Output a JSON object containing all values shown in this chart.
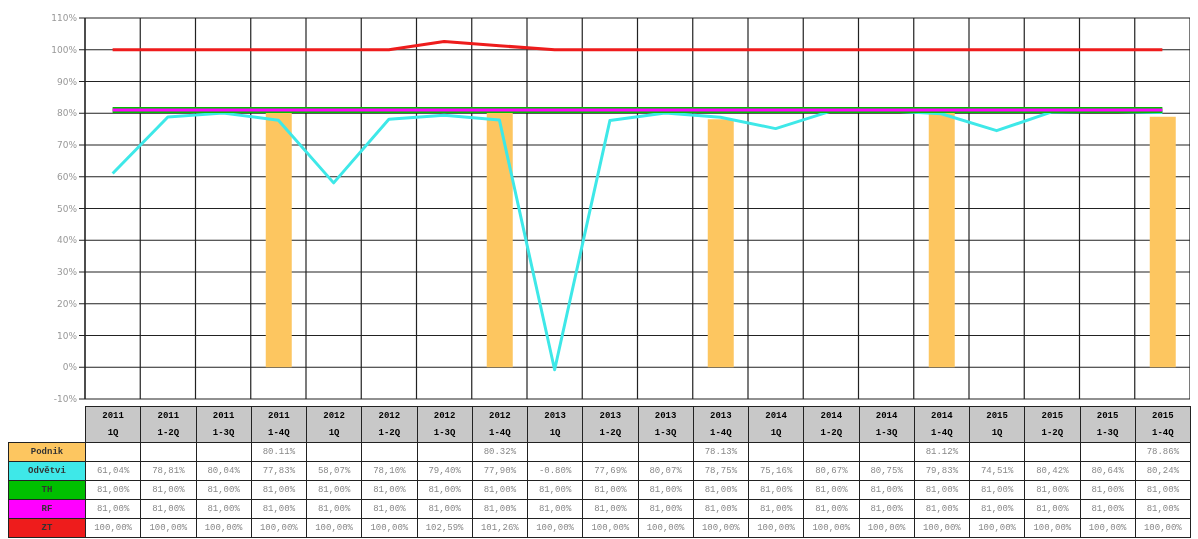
{
  "chart_data": {
    "type": "line",
    "categories": [
      "2011 1Q",
      "2011 1-2Q",
      "2011 1-3Q",
      "2011 1-4Q",
      "2012 1Q",
      "2012 1-2Q",
      "2012 1-3Q",
      "2012 1-4Q",
      "2013 1Q",
      "2013 1-2Q",
      "2013 1-3Q",
      "2013 1-4Q",
      "2014 1Q",
      "2014 1-2Q",
      "2014 1-3Q",
      "2014 1-4Q",
      "2015 1Q",
      "2015 1-2Q",
      "2015 1-3Q",
      "2015 1-4Q"
    ],
    "series": [
      {
        "name": "Podnik",
        "type": "bar",
        "color": "#fdc660",
        "values": [
          null,
          null,
          null,
          80.11,
          null,
          null,
          null,
          80.32,
          null,
          null,
          null,
          78.13,
          null,
          null,
          null,
          81.12,
          null,
          null,
          null,
          78.86
        ],
        "value_labels": [
          null,
          null,
          null,
          "80.11%",
          null,
          null,
          null,
          "80.32%",
          null,
          null,
          null,
          "78.13%",
          null,
          null,
          null,
          "81.12%",
          null,
          null,
          null,
          "78.86%"
        ]
      },
      {
        "name": "Odvětvi",
        "color": "#3ee8e8",
        "values": [
          61.04,
          78.81,
          80.04,
          77.83,
          58.07,
          78.1,
          79.4,
          77.9,
          -0.8,
          77.69,
          80.07,
          78.75,
          75.16,
          80.67,
          80.75,
          79.83,
          74.51,
          80.42,
          80.64,
          80.24
        ],
        "value_labels": [
          "61,04%",
          "78,81%",
          "80,04%",
          "77,83%",
          "58,07%",
          "78,10%",
          "79,40%",
          "77,90%",
          "-0.80%",
          "77,69%",
          "80,07%",
          "78,75%",
          "75,16%",
          "80,67%",
          "80,75%",
          "79,83%",
          "74,51%",
          "80,42%",
          "80,64%",
          "80,24%"
        ]
      },
      {
        "name": "TH",
        "color": "#00c000",
        "values": [
          81,
          81,
          81,
          81,
          81,
          81,
          81,
          81,
          81,
          81,
          81,
          81,
          81,
          81,
          81,
          81,
          81,
          81,
          81,
          81
        ],
        "value_labels": [
          "81,00%",
          "81,00%",
          "81,00%",
          "81,00%",
          "81,00%",
          "81,00%",
          "81,00%",
          "81,00%",
          "81,00%",
          "81,00%",
          "81,00%",
          "81,00%",
          "81,00%",
          "81,00%",
          "81,00%",
          "81,00%",
          "81,00%",
          "81,00%",
          "81,00%",
          "81,00%"
        ]
      },
      {
        "name": "RF",
        "color": "#ff00ff",
        "values": [
          81,
          81,
          81,
          81,
          81,
          81,
          81,
          81,
          81,
          81,
          81,
          81,
          81,
          81,
          81,
          81,
          81,
          81,
          81,
          81
        ],
        "value_labels": [
          "81,00%",
          "81,00%",
          "81,00%",
          "81,00%",
          "81,00%",
          "81,00%",
          "81,00%",
          "81,00%",
          "81,00%",
          "81,00%",
          "81,00%",
          "81,00%",
          "81,00%",
          "81,00%",
          "81,00%",
          "81,00%",
          "81,00%",
          "81,00%",
          "81,00%",
          "81,00%"
        ]
      },
      {
        "name": "ZT",
        "color": "#ee1c1c",
        "values": [
          100,
          100,
          100,
          100,
          100,
          100,
          102.59,
          101.26,
          100,
          100,
          100,
          100,
          100,
          100,
          100,
          100,
          100,
          100,
          100,
          100
        ],
        "value_labels": [
          "100,00%",
          "100,00%",
          "100,00%",
          "100,00%",
          "100,00%",
          "100,00%",
          "102,59%",
          "101,26%",
          "100,00%",
          "100,00%",
          "100,00%",
          "100,00%",
          "100,00%",
          "100,00%",
          "100,00%",
          "100,00%",
          "100,00%",
          "100,00%",
          "100,00%",
          "100,00%"
        ]
      }
    ],
    "ylim": [
      -10,
      110
    ],
    "yticks": [
      {
        "value": -10,
        "label": "-10%"
      },
      {
        "value": 0,
        "label": "0%"
      },
      {
        "value": 10,
        "label": "10%"
      },
      {
        "value": 20,
        "label": "20%"
      },
      {
        "value": 30,
        "label": "30%"
      },
      {
        "value": 40,
        "label": "40%"
      },
      {
        "value": 50,
        "label": "50%"
      },
      {
        "value": 60,
        "label": "60%"
      },
      {
        "value": 70,
        "label": "70%"
      },
      {
        "value": 80,
        "label": "80%"
      },
      {
        "value": 90,
        "label": "90%"
      },
      {
        "value": 100,
        "label": "100%"
      },
      {
        "value": 110,
        "label": "110%"
      }
    ],
    "grid": true,
    "legend": "bottom",
    "marker": "none",
    "line_style": "solid"
  }
}
